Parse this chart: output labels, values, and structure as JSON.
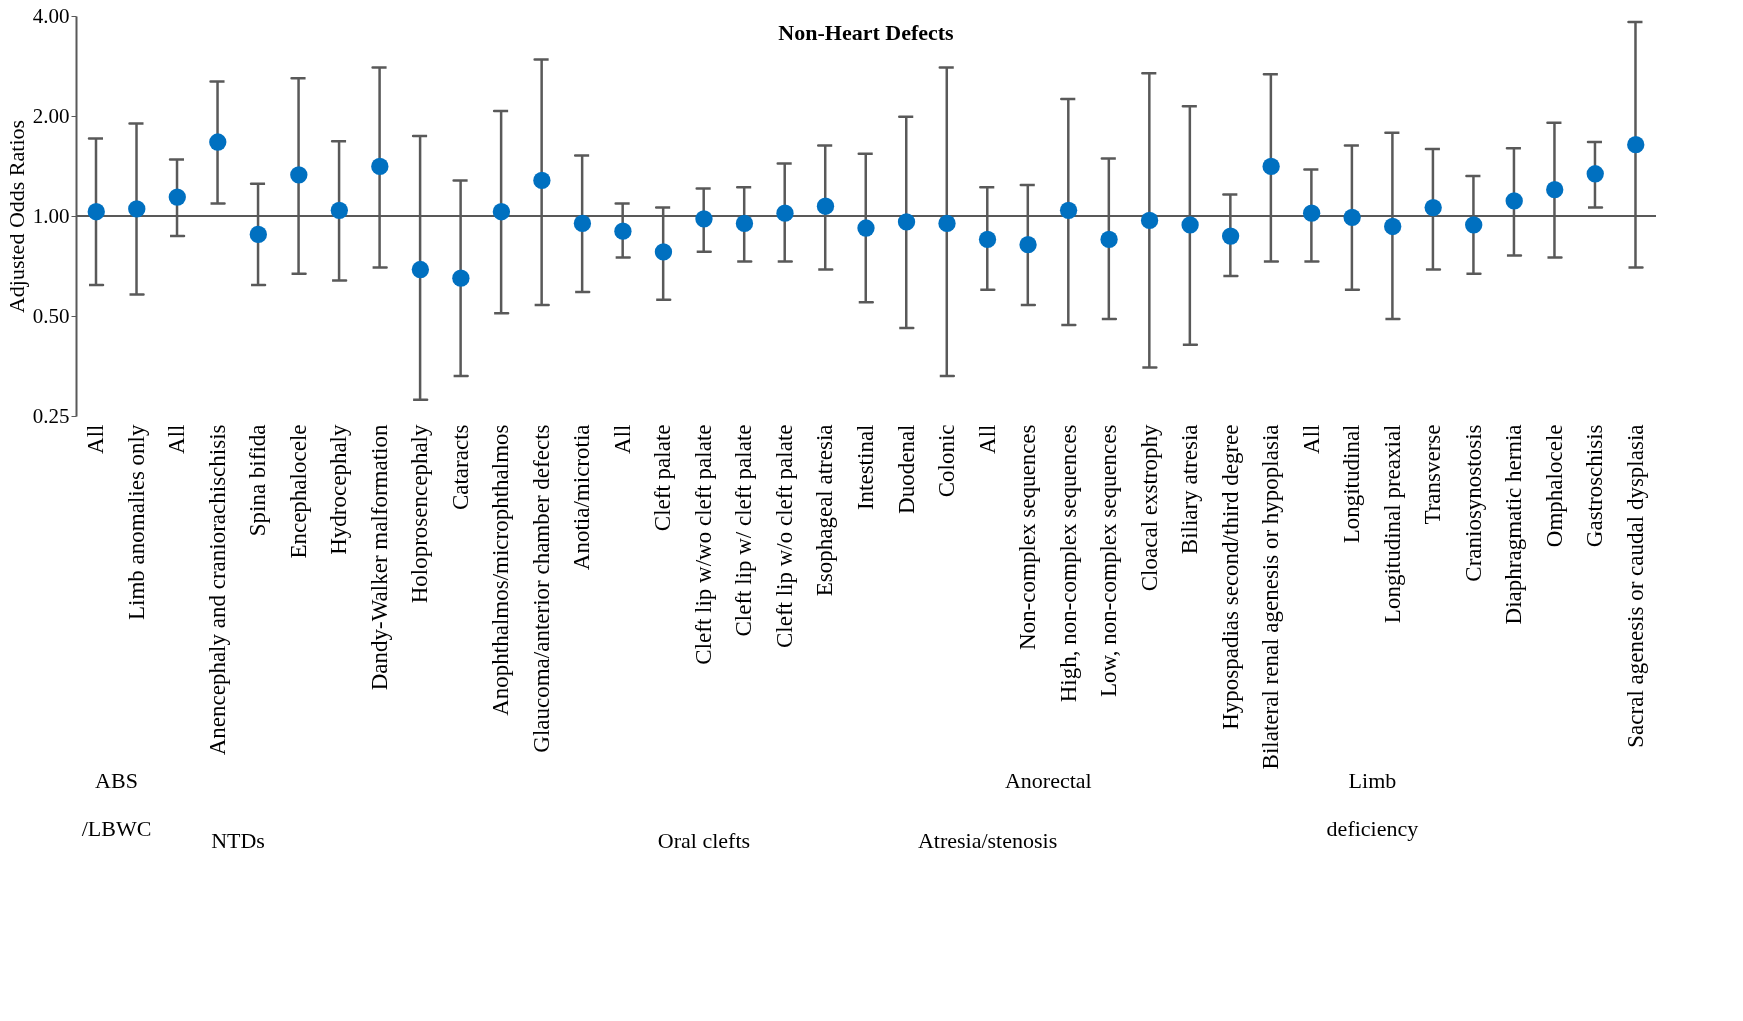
{
  "chart_data": {
    "type": "scatter",
    "title": "Non-Heart Defects",
    "ylabel": "Adjusted Odds Ratios",
    "categories": [
      "All",
      "Limb anomalies only",
      "All",
      "Anencephaly and craniorachischisis",
      "Spina bifida",
      "Encephalocele",
      "Hydrocephaly",
      "Dandy-Walker malformation",
      "Holoprosencephaly",
      "Cataracts",
      "Anophthalmos/microphthalmos",
      "Glaucoma/anterior chamber defects",
      "Anotia/microtia",
      "All",
      "Cleft palate",
      "Cleft lip w/wo cleft palate",
      "Cleft lip w/ cleft palate",
      "Cleft lip w/o cleft palate",
      "Esophageal atresia",
      "Intestinal",
      "Duodenal",
      "Colonic",
      "All",
      "Non-complex sequences",
      "High, non-complex sequences",
      "Low, non-complex sequences",
      "Cloacal exstrophy",
      "Biliary atresia",
      "Hypospadias second/third degree",
      "Bilateral renal agenesis or hypoplasia",
      "All",
      "Longitudinal",
      "Longitudinal preaxial",
      "Transverse",
      "Craniosynostosis",
      "Diaphragmatic hernia",
      "Omphalocele",
      "Gastroschisis",
      "Sacral agenesis or caudal dysplasia"
    ],
    "values": [
      1.03,
      1.05,
      1.14,
      1.67,
      0.88,
      1.33,
      1.04,
      1.41,
      0.69,
      0.65,
      1.03,
      1.28,
      0.95,
      0.9,
      0.78,
      0.98,
      0.95,
      1.02,
      1.07,
      0.92,
      0.96,
      0.95,
      0.85,
      0.82,
      1.04,
      0.85,
      0.97,
      0.94,
      0.87,
      1.41,
      1.02,
      0.99,
      0.93,
      1.06,
      0.94,
      1.11,
      1.2,
      1.34,
      1.64
    ],
    "errors": [
      [
        0.62,
        1.71
      ],
      [
        0.58,
        1.9
      ],
      [
        0.87,
        1.48
      ],
      [
        1.09,
        2.54
      ],
      [
        0.62,
        1.25
      ],
      [
        0.67,
        2.6
      ],
      [
        0.64,
        1.68
      ],
      [
        0.7,
        2.8
      ],
      [
        0.28,
        1.74
      ],
      [
        0.33,
        1.28
      ],
      [
        0.51,
        2.07
      ],
      [
        0.54,
        2.96
      ],
      [
        0.59,
        1.52
      ],
      [
        0.75,
        1.09
      ],
      [
        0.56,
        1.06
      ],
      [
        0.78,
        1.21
      ],
      [
        0.73,
        1.22
      ],
      [
        0.73,
        1.44
      ],
      [
        0.69,
        1.63
      ],
      [
        0.55,
        1.54
      ],
      [
        0.46,
        1.99
      ],
      [
        0.33,
        2.8
      ],
      [
        0.6,
        1.22
      ],
      [
        0.54,
        1.24
      ],
      [
        0.47,
        2.25
      ],
      [
        0.49,
        1.49
      ],
      [
        0.35,
        2.69
      ],
      [
        0.41,
        2.14
      ],
      [
        0.66,
        1.16
      ],
      [
        0.73,
        2.67
      ],
      [
        0.73,
        1.38
      ],
      [
        0.6,
        1.63
      ],
      [
        0.49,
        1.78
      ],
      [
        0.69,
        1.59
      ],
      [
        0.67,
        1.32
      ],
      [
        0.76,
        1.6
      ],
      [
        0.75,
        1.91
      ],
      [
        1.06,
        1.67
      ],
      [
        0.7,
        3.84
      ]
    ],
    "color": "#0070c0",
    "marker": "circle",
    "log": "y",
    "ylim": [
      0.25,
      4
    ],
    "yticks": [
      {
        "value": 0.25,
        "label": "0.25"
      },
      {
        "value": 0.5,
        "label": "0.50"
      },
      {
        "value": 1,
        "label": "1.00"
      },
      {
        "value": 2,
        "label": "2.00"
      },
      {
        "value": 4,
        "label": "4.00"
      }
    ],
    "ref_lines": [
      {
        "axis": "y",
        "value": 1,
        "color": "#595959"
      }
    ],
    "grid": false,
    "annotations": [
      "ABS\n/LBWC",
      "NTDs",
      "Oral clefts",
      "Atresia/stenosis",
      "Anorectal",
      "Limb\ndeficiency"
    ]
  }
}
